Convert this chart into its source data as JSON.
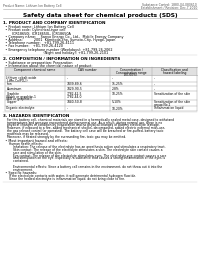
{
  "header_left": "Product Name: Lithium Ion Battery Cell",
  "header_right_line1": "Substance Control: 1880-04-080610",
  "header_right_line2": "Establishment / Revision: Dec.7.2010",
  "title": "Safety data sheet for chemical products (SDS)",
  "section1_title": "1. PRODUCT AND COMPANY IDENTIFICATION",
  "section1_lines": [
    "  • Product name: Lithium Ion Battery Cell",
    "  • Product code: Cylindrical-type cell",
    "        ICR18650J, ICR18650L, ICR18650A",
    "  • Company name:    Sanyo Energy Co., Ltd.,  Mobile Energy Company",
    "  • Address:          2001  Kamitoda-cho, Sumoto-City, Hyogo, Japan",
    "  • Telephone number:   +81-799-26-4111",
    "  • Fax number:   +81-799-26-4120",
    "  • Emergency telephone number (Weekdays): +81-799-26-2062",
    "                                    (Night and holiday): +81-799-26-2101"
  ],
  "section2_title": "2. COMPOSITION / INFORMATION ON INGREDIENTS",
  "section2_sub": "  • Substance or preparation: Preparation",
  "section2_sub2": "  • Information about the chemical nature of product:",
  "table_col_headers": [
    "Component chemical name",
    "CAS number",
    "Concentration /\nConcentration range\n(30-60%)",
    "Classification and\nhazard labeling"
  ],
  "table_rows": [
    [
      "Lithium cobalt oxide\n(LiMn-Co(PO₄))",
      "-",
      "-",
      "-"
    ],
    [
      "Iron",
      "7439-89-6",
      "15-25%",
      "-"
    ],
    [
      "Aluminum",
      "7429-90-5",
      "2-8%",
      "-"
    ],
    [
      "Graphite\n(Black or graphite-1\n(A/B or graphite))",
      "7782-42-5\n7782-44-0",
      "10-25%",
      "Sensitization of the skin"
    ],
    [
      "Copper",
      "7440-50-8",
      "5-10%",
      "Sensitization of the skin\ngroup No.2"
    ],
    [
      "Organic electrolyte",
      "-",
      "10-20%",
      "Inflammation liquid"
    ]
  ],
  "section3_title": "3. HAZARDS IDENTIFICATION",
  "section3_para": "    For this battery cell, chemical materials are stored in a hermetically sealed metal case, designed to withstand temperatures and pressure encountered during normal use. As a result, during normal use, there is no physical changes of condition by evaporation and no physical changes of battery electrolyte leakage. However, if exposed to a fire, added mechanical shocks, decomposed, added electric external miss-use, the gas release control (or operated). The battery cell case will be breached or fire-puffed, battery toxic materials may be released.\n    Moreover, if heated strongly by the surrounding fire, toxic gas may be emitted.",
  "section3_hazards_title": "  • Most important hazard and effects:",
  "section3_hazards_lines": [
    "      Human health effects:",
    "          Inhalation: The release of the electrolyte has an anesthesia action and stimulates a respiratory tract.",
    "          Skin contact: The release of the electrolyte stimulates a skin. The electrolyte skin contact causes a",
    "          sore and stimulation of the skin.",
    "          Eye contact: The release of the electrolyte stimulates eyes. The electrolyte eye contact causes a sore",
    "          and stimulation on the eye. Especially, a substance that causes a strong inflammation of the eyes is",
    "          contained.",
    "",
    "          Environmental effects: Since a battery cell remains in the environment, do not throw out it into the",
    "          environment."
  ],
  "section3_specific_title": "  • Specific hazards:",
  "section3_specific_lines": [
    "      If the electrolyte contacts with water, it will generate detrimental hydrogen fluoride.",
    "      Since the heated electrolyte is inflammation liquid, do not bring close to fire."
  ],
  "bg_color": "#ffffff",
  "header_divider_color": "#aaaaaa",
  "section_divider_color": "#cccccc",
  "table_header_bg": "#e0e0e0",
  "table_border_color": "#999999"
}
